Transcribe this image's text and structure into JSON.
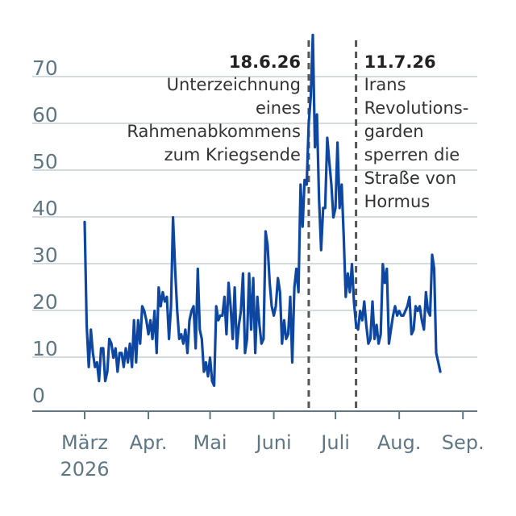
{
  "chart_data": {
    "type": "line",
    "title": "",
    "xlabel": "",
    "ylabel": "",
    "ylim": [
      0,
      75
    ],
    "yticks": [
      0,
      10,
      20,
      30,
      40,
      50,
      60,
      70
    ],
    "grid": true,
    "series_color": "#0d47a1",
    "x_tick_labels": [
      {
        "month": "März",
        "year": "2026"
      },
      {
        "month": "Apr.",
        "year": ""
      },
      {
        "month": "Mai",
        "year": ""
      },
      {
        "month": "Juni",
        "year": ""
      },
      {
        "month": "Juli",
        "year": ""
      },
      {
        "month": "Aug.",
        "year": ""
      },
      {
        "month": "Sep.",
        "year": ""
      }
    ],
    "annotations": [
      {
        "date": "2026-06-18",
        "label": "18.6.26",
        "lines": [
          "Unterzeichnung",
          "eines",
          "Rahmenabkommens",
          "zum Kriegsende"
        ],
        "align": "left-of-line"
      },
      {
        "date": "2026-07-11",
        "label": "11.7.26",
        "lines": [
          "Irans",
          "Revolutions-",
          "garden",
          "sperren die",
          "Straße von",
          "Hormus"
        ],
        "align": "right-of-line"
      }
    ],
    "series": [
      {
        "x_start": "2026-03-01",
        "x_step_days": 1,
        "values": [
          37,
          15,
          6,
          14,
          9,
          6,
          7,
          3,
          10,
          10,
          3,
          5,
          12,
          11,
          8,
          10,
          5,
          9,
          9,
          6,
          10,
          7,
          11,
          6,
          16,
          7,
          16,
          11,
          19,
          18,
          16,
          13,
          16,
          12,
          18,
          9,
          23,
          19,
          22,
          20,
          21,
          12,
          19,
          38,
          27,
          18,
          12,
          13,
          11,
          14,
          9,
          16,
          18,
          19,
          10,
          27,
          14,
          12,
          5,
          7,
          4,
          8,
          3,
          2,
          19,
          16,
          17,
          17,
          21,
          13,
          24,
          19,
          12,
          23,
          10,
          15,
          18,
          26,
          9,
          12,
          26,
          14,
          25,
          9,
          21,
          15,
          11,
          12,
          35,
          32,
          24,
          19,
          17,
          19,
          25,
          22,
          11,
          16,
          12,
          13,
          21,
          7,
          23,
          27,
          22,
          45,
          36,
          46,
          45,
          58,
          64,
          77,
          53,
          60,
          42,
          31,
          40,
          40,
          55,
          50,
          45,
          38,
          40,
          54,
          40,
          45,
          34,
          21,
          26,
          22,
          28,
          20,
          15,
          14,
          18,
          16,
          20,
          15,
          11,
          12,
          20,
          12,
          15,
          11,
          13,
          28,
          24,
          27,
          11,
          14,
          17,
          19,
          17,
          18,
          17,
          17,
          18,
          19,
          21,
          13,
          14,
          19,
          18,
          19,
          16,
          14,
          22,
          18,
          17,
          30,
          27,
          9,
          7,
          5
        ]
      }
    ]
  }
}
